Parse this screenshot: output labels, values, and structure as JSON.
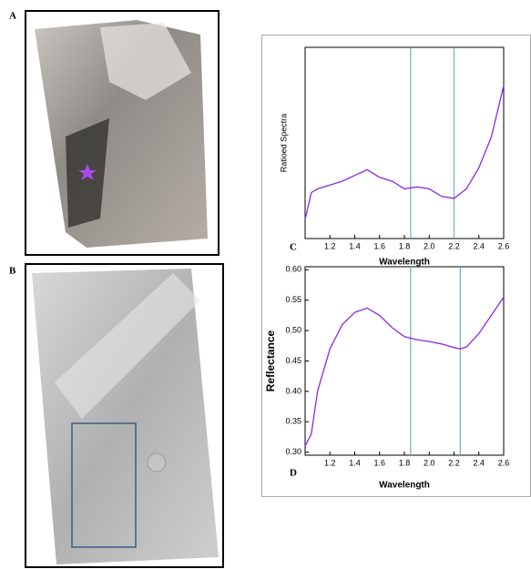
{
  "panels": [
    {
      "label": "A"
    },
    {
      "label": "B"
    }
  ],
  "chart_data": [
    {
      "type": "line",
      "panel_label": "C",
      "ylabel": "Ratioed Spectra",
      "xlabel": "Wavelength",
      "xlim": [
        1.0,
        2.6
      ],
      "ylim": [
        0,
        1
      ],
      "xticks": [
        1.2,
        1.4,
        1.6,
        1.8,
        {
          "value": 2.0,
          "label": "2.0"
        },
        2.2,
        2.4,
        2.6
      ],
      "vlines": [
        1.85,
        2.2
      ],
      "vline_color": "#7aa8cc",
      "x": [
        1.0,
        1.05,
        1.1,
        1.2,
        1.3,
        1.4,
        1.5,
        1.6,
        1.7,
        1.8,
        1.9,
        2.0,
        2.1,
        2.2,
        2.3,
        2.4,
        2.5,
        2.6
      ],
      "series": [
        {
          "name": "Ratioed Spectra",
          "color": "#8a2be2",
          "values": [
            0.1,
            0.24,
            0.26,
            0.28,
            0.3,
            0.33,
            0.36,
            0.32,
            0.3,
            0.26,
            0.27,
            0.26,
            0.22,
            0.21,
            0.26,
            0.37,
            0.53,
            0.8
          ]
        }
      ]
    },
    {
      "type": "line",
      "panel_label": "D",
      "ylabel": "Reflectance",
      "xlabel": "Wavelength",
      "xlim": [
        1.0,
        2.6
      ],
      "ylim": [
        0.295,
        0.605
      ],
      "xticks": [
        1.2,
        1.4,
        1.6,
        1.8,
        {
          "value": 2.0,
          "label": "2.0"
        },
        2.2,
        2.4,
        2.6
      ],
      "yticks": [
        {
          "value": 0.3,
          "label": "0.30"
        },
        {
          "value": 0.35,
          "label": "0.35"
        },
        {
          "value": 0.4,
          "label": "0.40"
        },
        {
          "value": 0.45,
          "label": "0.45"
        },
        {
          "value": 0.5,
          "label": "0.50"
        },
        {
          "value": 0.55,
          "label": "0.55"
        },
        {
          "value": 0.6,
          "label": "0.60"
        }
      ],
      "vlines": [
        1.85,
        2.25
      ],
      "vline_color": "#7aa8cc",
      "x": [
        1.0,
        1.05,
        1.1,
        1.2,
        1.3,
        1.4,
        1.5,
        1.6,
        1.7,
        1.8,
        1.9,
        2.0,
        2.1,
        2.2,
        2.25,
        2.3,
        2.4,
        2.5,
        2.6
      ],
      "series": [
        {
          "name": "Reflectance",
          "color": "#8a2be2",
          "values": [
            0.31,
            0.33,
            0.4,
            0.47,
            0.51,
            0.53,
            0.537,
            0.525,
            0.505,
            0.49,
            0.485,
            0.482,
            0.478,
            0.472,
            0.47,
            0.473,
            0.495,
            0.525,
            0.555
          ]
        }
      ]
    }
  ]
}
